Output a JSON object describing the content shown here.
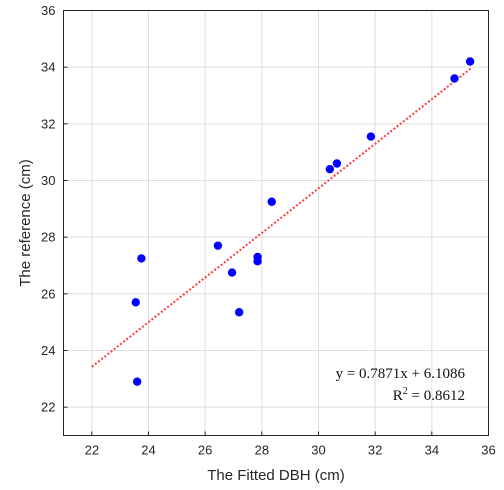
{
  "chart_data": {
    "type": "scatter",
    "title": "",
    "xlabel": "The Fitted DBH (cm)",
    "ylabel": "The reference (cm)",
    "xlim": [
      21,
      36
    ],
    "ylim": [
      21,
      36
    ],
    "x_ticks": [
      22,
      24,
      26,
      28,
      30,
      32,
      34,
      36
    ],
    "y_ticks": [
      22,
      24,
      26,
      28,
      30,
      32,
      34,
      36
    ],
    "grid": true,
    "marker_color": "#0000ff",
    "fit_line_color": "#ff3b3b",
    "series": [
      {
        "points": [
          {
            "x": 23.55,
            "y": 25.7
          },
          {
            "x": 23.6,
            "y": 22.9
          },
          {
            "x": 23.75,
            "y": 27.25
          },
          {
            "x": 26.45,
            "y": 27.7
          },
          {
            "x": 26.95,
            "y": 26.75
          },
          {
            "x": 27.2,
            "y": 25.35
          },
          {
            "x": 27.85,
            "y": 27.3
          },
          {
            "x": 27.85,
            "y": 27.15
          },
          {
            "x": 28.35,
            "y": 29.25
          },
          {
            "x": 30.4,
            "y": 30.4
          },
          {
            "x": 30.65,
            "y": 30.6
          },
          {
            "x": 31.85,
            "y": 31.55
          },
          {
            "x": 34.8,
            "y": 33.6
          },
          {
            "x": 35.35,
            "y": 34.2
          }
        ]
      }
    ],
    "fit": {
      "slope": 0.7871,
      "intercept": 6.1086,
      "x_range": [
        22,
        35.4
      ]
    },
    "annotations": {
      "equation": "y = 0.7871x + 6.1086",
      "r2_prefix": "R",
      "r2_sup": "2",
      "r2_suffix": " = 0.8612"
    }
  }
}
